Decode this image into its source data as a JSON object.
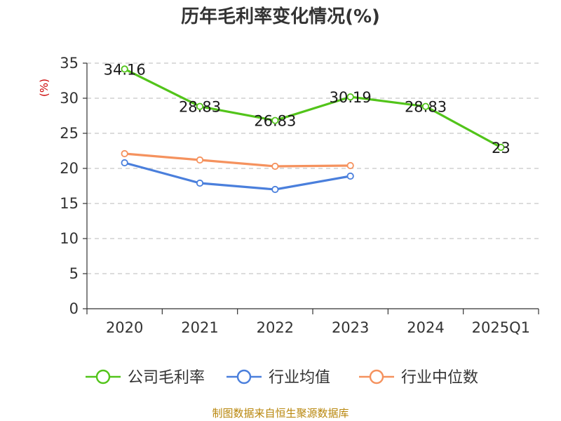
{
  "chart_data": {
    "type": "line",
    "title": "历年毛利率变化情况(%)",
    "ylabel": "(%)",
    "categories": [
      "2020",
      "2021",
      "2022",
      "2023",
      "2024",
      "2025Q1"
    ],
    "ylim": [
      0,
      35
    ],
    "yticks": [
      0,
      5,
      10,
      15,
      20,
      25,
      30,
      35
    ],
    "grid": true,
    "legend_position": "bottom",
    "series": [
      {
        "name": "公司毛利率",
        "color": "#52c41a",
        "values": [
          34.16,
          28.83,
          26.83,
          30.19,
          28.83,
          23
        ],
        "labels": [
          "34.16",
          "28.83",
          "26.83",
          "30.19",
          "28.83",
          "23"
        ],
        "show_labels": true
      },
      {
        "name": "行业均值",
        "color": "#4a7fdc",
        "values": [
          20.8,
          17.9,
          17.0,
          18.9,
          null,
          null
        ],
        "show_labels": false
      },
      {
        "name": "行业中位数",
        "color": "#f5925e",
        "values": [
          22.1,
          21.2,
          20.3,
          20.4,
          null,
          null
        ],
        "show_labels": false
      }
    ]
  },
  "source": "制图数据来自恒生聚源数据库"
}
